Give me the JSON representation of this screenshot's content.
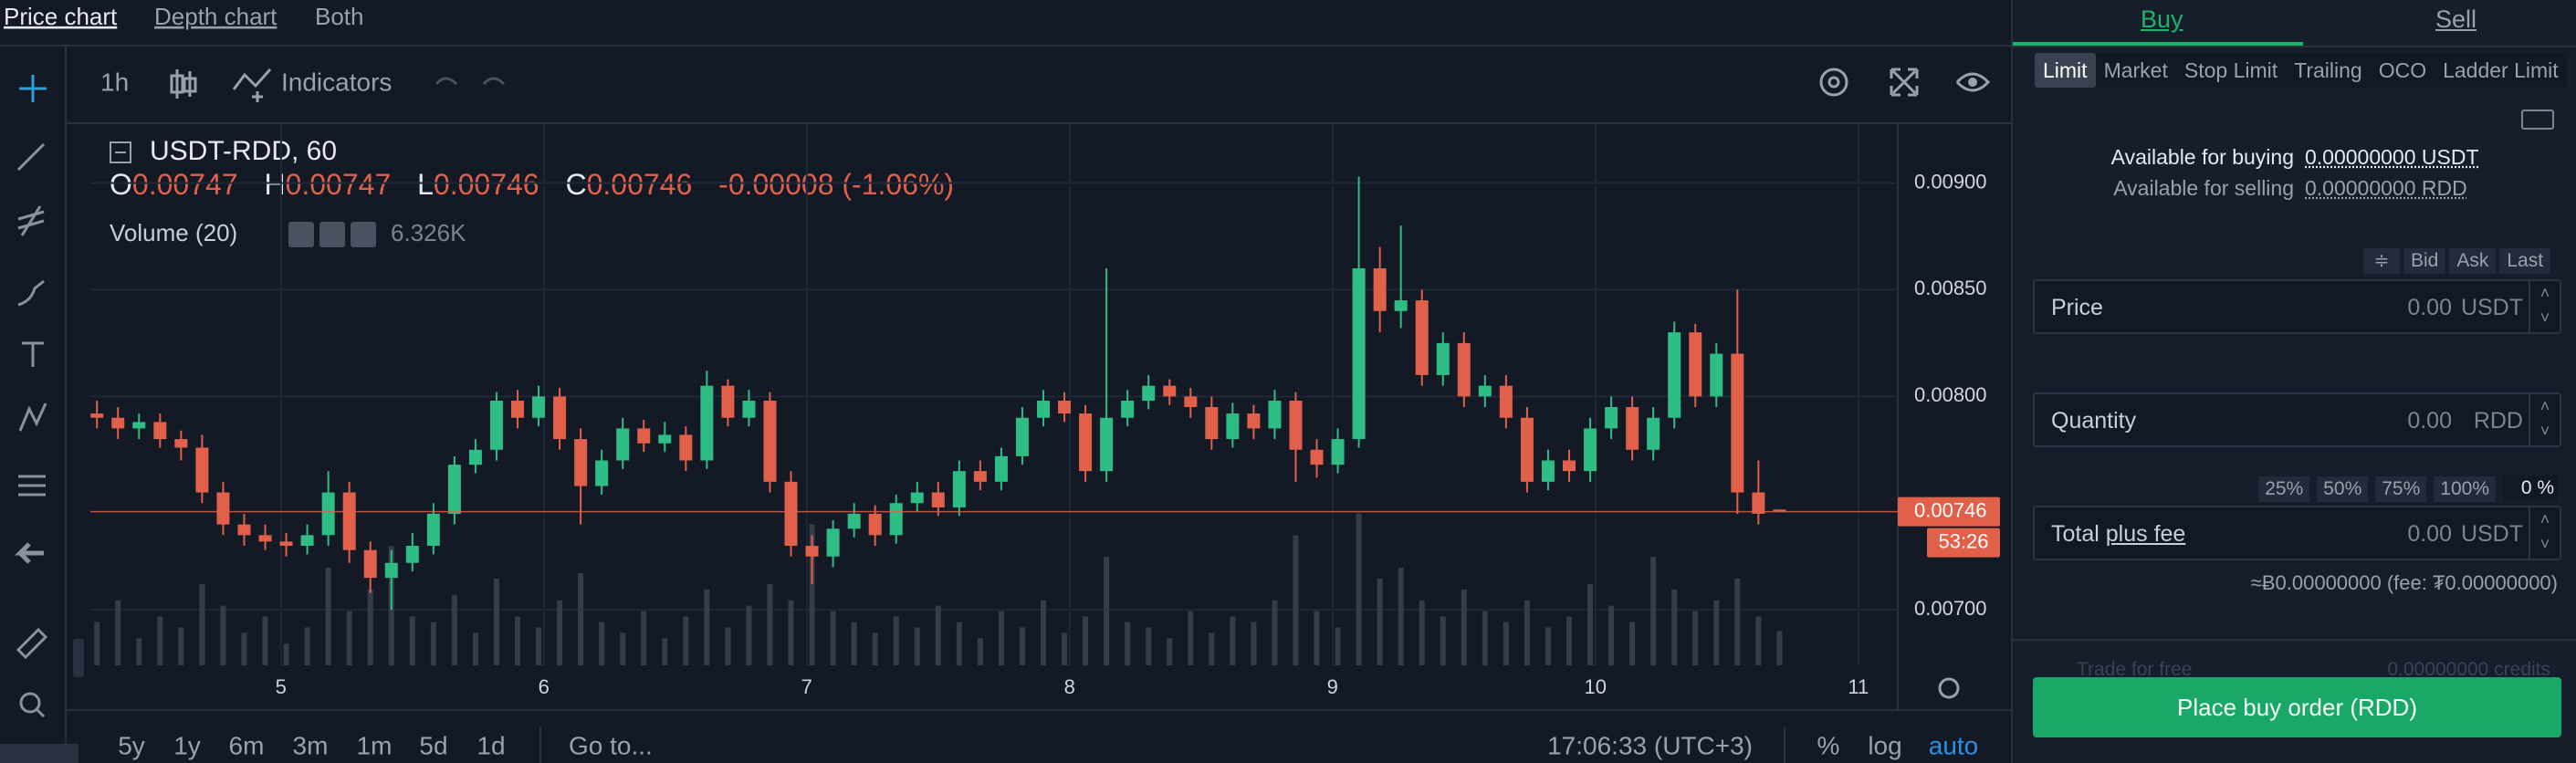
{
  "tabs": [
    "Price chart",
    "Depth chart",
    "Both"
  ],
  "toolbar": {
    "interval": "1h",
    "indicators": "Indicators"
  },
  "chart_data": {
    "type": "candlestick",
    "symbol": "USDT-RDD, 60",
    "ohlc_labels": [
      "O",
      "H",
      "L",
      "C"
    ],
    "change": "-0.00008 (-1.06%)",
    "volume_label": "Volume (20)",
    "volume_value": "6.326K",
    "x": [
      4.3,
      4.38,
      4.46,
      4.54,
      4.62,
      4.7,
      4.78,
      4.86,
      4.94,
      5.02,
      5.1,
      5.18,
      5.26,
      5.34,
      5.42,
      5.5,
      5.58,
      5.66,
      5.74,
      5.82,
      5.9,
      5.98,
      6.06,
      6.14,
      6.22,
      6.3,
      6.38,
      6.46,
      6.54,
      6.62,
      6.7,
      6.78,
      6.86,
      6.94,
      7.02,
      7.1,
      7.18,
      7.26,
      7.34,
      7.42,
      7.5,
      7.58,
      7.66,
      7.74,
      7.82,
      7.9,
      7.98,
      8.06,
      8.14,
      8.22,
      8.3,
      8.38,
      8.46,
      8.54,
      8.62,
      8.7,
      8.78,
      8.86,
      8.94,
      9.02,
      9.1,
      9.18,
      9.26,
      9.34,
      9.42,
      9.5,
      9.58,
      9.66,
      9.74,
      9.82,
      9.9,
      9.98,
      10.06,
      10.14,
      10.22,
      10.3,
      10.38,
      10.46,
      10.54,
      10.62,
      10.7
    ],
    "open": [
      0.00792,
      0.0079,
      0.00785,
      0.00788,
      0.0078,
      0.00776,
      0.00755,
      0.0074,
      0.00735,
      0.00732,
      0.0073,
      0.00735,
      0.00755,
      0.00728,
      0.00715,
      0.00722,
      0.0073,
      0.00745,
      0.00768,
      0.00775,
      0.00798,
      0.0079,
      0.008,
      0.0078,
      0.00758,
      0.0077,
      0.00785,
      0.00778,
      0.00782,
      0.0077,
      0.00805,
      0.0079,
      0.00798,
      0.0076,
      0.0073,
      0.00725,
      0.00738,
      0.00745,
      0.00735,
      0.0075,
      0.00755,
      0.00748,
      0.00765,
      0.0076,
      0.00772,
      0.0079,
      0.00798,
      0.00792,
      0.00765,
      0.0079,
      0.00798,
      0.00805,
      0.008,
      0.00795,
      0.0078,
      0.00792,
      0.00785,
      0.00798,
      0.00775,
      0.00768,
      0.0078,
      0.0086,
      0.0084,
      0.00845,
      0.0081,
      0.00825,
      0.008,
      0.00805,
      0.0079,
      0.0076,
      0.0077,
      0.00765,
      0.00785,
      0.00795,
      0.00775,
      0.0079,
      0.0083,
      0.008,
      0.0082,
      0.00755,
      0.00747
    ],
    "high": [
      0.00798,
      0.00795,
      0.00792,
      0.00792,
      0.00784,
      0.00782,
      0.0076,
      0.00745,
      0.0074,
      0.00736,
      0.0074,
      0.00765,
      0.0076,
      0.00732,
      0.00728,
      0.00736,
      0.0075,
      0.00772,
      0.0078,
      0.00802,
      0.00803,
      0.00805,
      0.00804,
      0.00785,
      0.00775,
      0.0079,
      0.00789,
      0.00788,
      0.00786,
      0.00812,
      0.00808,
      0.00803,
      0.00802,
      0.00765,
      0.00735,
      0.00742,
      0.0075,
      0.00749,
      0.00754,
      0.0076,
      0.0076,
      0.0077,
      0.0077,
      0.00776,
      0.00795,
      0.00803,
      0.00802,
      0.00796,
      0.0086,
      0.00803,
      0.0081,
      0.00808,
      0.00804,
      0.008,
      0.00797,
      0.00796,
      0.00803,
      0.00802,
      0.0078,
      0.00785,
      0.00903,
      0.0087,
      0.0088,
      0.0085,
      0.0083,
      0.0083,
      0.0081,
      0.0081,
      0.00795,
      0.00775,
      0.00775,
      0.0079,
      0.008,
      0.008,
      0.00795,
      0.00835,
      0.00834,
      0.00825,
      0.0085,
      0.0077,
      0.00747
    ],
    "low": [
      0.00785,
      0.0078,
      0.0078,
      0.00776,
      0.0077,
      0.0075,
      0.00735,
      0.0073,
      0.00728,
      0.00725,
      0.00726,
      0.0073,
      0.00722,
      0.00708,
      0.007,
      0.00718,
      0.00726,
      0.0074,
      0.00764,
      0.0077,
      0.00785,
      0.00786,
      0.00775,
      0.0074,
      0.00754,
      0.00766,
      0.00774,
      0.00774,
      0.00765,
      0.00766,
      0.00786,
      0.00786,
      0.00755,
      0.00725,
      0.00712,
      0.0072,
      0.00734,
      0.0073,
      0.00731,
      0.00746,
      0.00744,
      0.00744,
      0.00756,
      0.00756,
      0.00768,
      0.00786,
      0.00788,
      0.0076,
      0.0076,
      0.00786,
      0.00794,
      0.00796,
      0.0079,
      0.00775,
      0.00776,
      0.0078,
      0.0078,
      0.0076,
      0.00762,
      0.00764,
      0.00776,
      0.0083,
      0.00832,
      0.00805,
      0.00805,
      0.00795,
      0.00795,
      0.00785,
      0.00755,
      0.00756,
      0.0076,
      0.0076,
      0.0078,
      0.0077,
      0.0077,
      0.00785,
      0.00795,
      0.00795,
      0.00745,
      0.0074,
      0.00746
    ],
    "close": [
      0.0079,
      0.00785,
      0.00788,
      0.0078,
      0.00776,
      0.00755,
      0.0074,
      0.00735,
      0.00732,
      0.0073,
      0.00735,
      0.00755,
      0.00728,
      0.00715,
      0.00722,
      0.0073,
      0.00745,
      0.00768,
      0.00775,
      0.00798,
      0.0079,
      0.008,
      0.0078,
      0.00758,
      0.0077,
      0.00785,
      0.00778,
      0.00782,
      0.0077,
      0.00805,
      0.0079,
      0.00798,
      0.0076,
      0.0073,
      0.00725,
      0.00738,
      0.00745,
      0.00735,
      0.0075,
      0.00755,
      0.00748,
      0.00765,
      0.0076,
      0.00772,
      0.0079,
      0.00798,
      0.00792,
      0.00765,
      0.0079,
      0.00798,
      0.00805,
      0.008,
      0.00795,
      0.0078,
      0.00792,
      0.00785,
      0.00798,
      0.00775,
      0.00768,
      0.0078,
      0.0086,
      0.0084,
      0.00845,
      0.0081,
      0.00825,
      0.008,
      0.00805,
      0.0079,
      0.0076,
      0.0077,
      0.00765,
      0.00785,
      0.00795,
      0.00775,
      0.0079,
      0.0083,
      0.008,
      0.0082,
      0.00755,
      0.00745,
      0.00746
    ],
    "volume": [
      8000,
      12000,
      5000,
      9000,
      7000,
      15000,
      11000,
      6000,
      9000,
      4000,
      7000,
      18000,
      10000,
      14000,
      22000,
      9000,
      8000,
      13000,
      6000,
      16000,
      9000,
      7000,
      12000,
      17000,
      8000,
      6000,
      10000,
      5000,
      9000,
      14000,
      7000,
      11000,
      15000,
      12000,
      26000,
      10000,
      8000,
      6000,
      9000,
      7000,
      11000,
      8000,
      5000,
      10000,
      7000,
      12000,
      6000,
      9000,
      20000,
      8000,
      7000,
      5000,
      10000,
      6000,
      9000,
      8000,
      12000,
      24000,
      10000,
      7000,
      28000,
      16000,
      18000,
      12000,
      9000,
      14000,
      10000,
      8000,
      12000,
      7000,
      9000,
      15000,
      11000,
      8000,
      20000,
      14000,
      10000,
      12000,
      16000,
      9000,
      6326
    ],
    "up_color": "#2ebd85",
    "down_color": "#e0604a",
    "volume_color": "#363c4a",
    "xlim": [
      4.275,
      11.15
    ],
    "xticks": [
      5,
      6,
      7,
      8,
      9,
      10,
      11
    ],
    "ylim": [
      0.00674,
      0.00928
    ],
    "yticks": [
      {
        "value": 0.007,
        "label": "0.00700"
      },
      {
        "value": 0.008,
        "label": "0.00800"
      },
      {
        "value": 0.0085,
        "label": "0.00850"
      },
      {
        "value": 0.009,
        "label": "0.00900"
      }
    ],
    "y2lim": [
      0,
      100000
    ],
    "grid": true,
    "last_price": 0.00746,
    "countdown": "53:26"
  },
  "bottom_bar": {
    "ranges": [
      "5y",
      "1y",
      "6m",
      "3m",
      "1m",
      "5d",
      "1d"
    ],
    "goto": "Go to...",
    "time": "17:06:33 (UTC+3)",
    "percent": "%",
    "log": "log",
    "auto": "auto"
  },
  "order_panel": {
    "sides": [
      "Buy",
      "Sell"
    ],
    "order_types": [
      "Limit",
      "Market",
      "Stop Limit",
      "Trailing",
      "OCO",
      "Ladder Limit"
    ],
    "available_buying_label": "Available for buying",
    "available_buying": "0.00000000 USDT",
    "available_selling_label": "Available for selling",
    "available_selling": "0.00000000 RDD",
    "price_sources": [
      "Bid",
      "Ask",
      "Last"
    ],
    "price": {
      "label": "Price",
      "value": "0.00",
      "unit": "USDT"
    },
    "quantity": {
      "label": "Quantity",
      "value": "0.00",
      "unit": "RDD"
    },
    "percentages": [
      "25%",
      "50%",
      "75%",
      "100%"
    ],
    "percent_input": "0 %",
    "total": {
      "label": "Total",
      "link": "plus fee",
      "value": "0.00",
      "unit": "USDT"
    },
    "estimate": "≈Ƀ0.00000000 (fee: ₮0.00000000)",
    "trade_free": "Trade for free",
    "credits": "0.00000000 credits",
    "submit": "Place buy order (RDD)"
  }
}
